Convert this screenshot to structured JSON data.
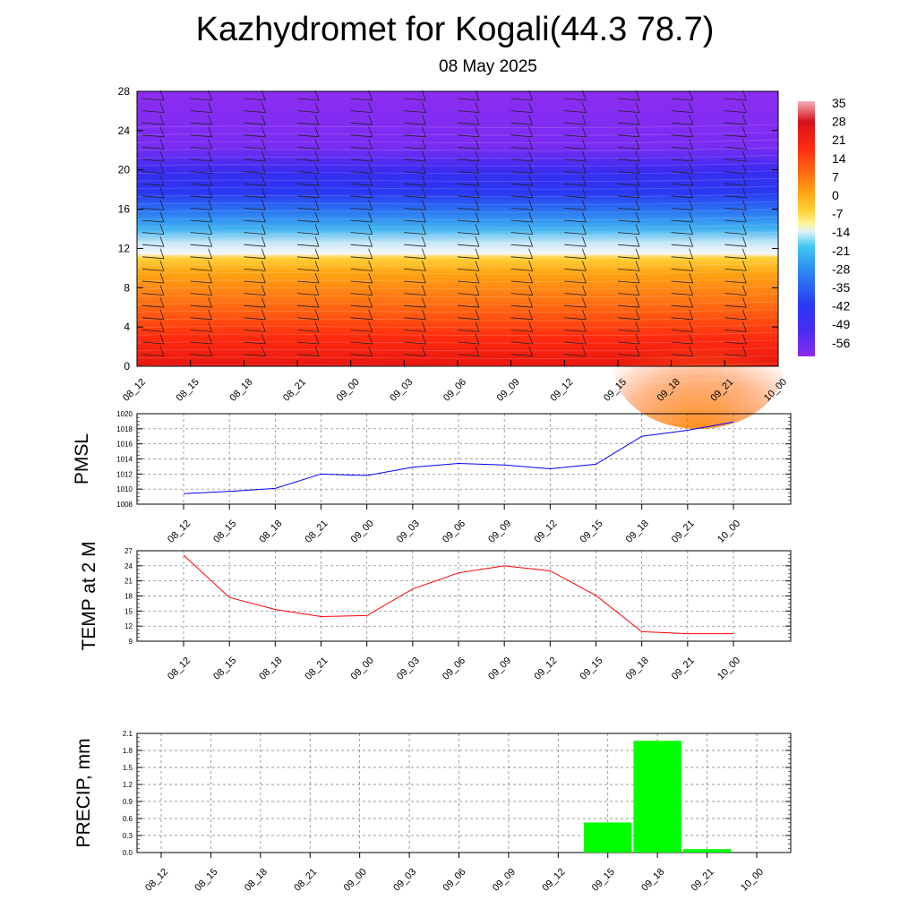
{
  "header": {
    "title": "Kazhydromet for Kogali(44.3 78.7)",
    "date": "08 May 2025"
  },
  "chart_data": [
    {
      "type": "heatmap",
      "name": "temperature-height-section",
      "x": [
        "08_12",
        "08_15",
        "08_18",
        "08_21",
        "09_00",
        "09_03",
        "09_06",
        "09_09",
        "09_12",
        "09_15",
        "09_18",
        "09_21",
        "10_00"
      ],
      "ylim": [
        0,
        28
      ],
      "yticks": [
        0,
        4,
        8,
        12,
        16,
        20,
        24,
        28
      ],
      "colorbar": {
        "labels": [
          "35",
          "28",
          "21",
          "14",
          "7",
          "0",
          "-7",
          "-14",
          "-21",
          "-28",
          "-35",
          "-42",
          "-49",
          "-56"
        ],
        "range": [
          -63,
          35
        ]
      },
      "colors": {
        "hot": "#ee1c12",
        "orange": "#ff9a12",
        "yellow": "#fff59a",
        "white": "#f4f6fb",
        "cyan": "#29b7f2",
        "blue": "#2a39f2",
        "violet": "#8b2cf2",
        "pink": "#f07a8a"
      }
    },
    {
      "type": "line",
      "name": "PMSL",
      "ylabel": "PMSL",
      "x": [
        "08_12",
        "08_15",
        "08_18",
        "08_21",
        "09_00",
        "09_03",
        "09_06",
        "09_09",
        "09_12",
        "09_15",
        "09_18",
        "09_21",
        "10_00"
      ],
      "values": [
        1009.4,
        1009.7,
        1010.1,
        1012.0,
        1011.8,
        1012.9,
        1013.4,
        1013.2,
        1012.7,
        1013.3,
        1017.0,
        1017.8,
        1018.9
      ],
      "ylim": [
        1008,
        1020
      ],
      "yticks": [
        "1008",
        "1010",
        "1012",
        "1014",
        "1016",
        "1018",
        "1020"
      ],
      "color": "#0000ff"
    },
    {
      "type": "line",
      "name": "TEMP at 2 M",
      "ylabel": "TEMP at 2 M",
      "x": [
        "08_12",
        "08_15",
        "08_18",
        "08_21",
        "09_00",
        "09_03",
        "09_06",
        "09_09",
        "09_12",
        "09_15",
        "09_18",
        "09_21",
        "10_00"
      ],
      "values": [
        26.1,
        17.7,
        15.3,
        13.9,
        14.1,
        19.4,
        22.6,
        24.0,
        23.0,
        18.1,
        10.9,
        10.5,
        10.5
      ],
      "ylim": [
        9,
        27
      ],
      "yticks": [
        "9",
        "12",
        "15",
        "18",
        "21",
        "24",
        "27"
      ],
      "color": "#ff0000"
    },
    {
      "type": "bar",
      "name": "PRECIP, mm",
      "ylabel": "PRECIP, mm",
      "x": [
        "08_12",
        "08_15",
        "08_18",
        "08_21",
        "09_00",
        "09_03",
        "09_06",
        "09_09",
        "09_12",
        "09_15",
        "09_18",
        "09_21",
        "10_00"
      ],
      "values": [
        0,
        0,
        0,
        0,
        0,
        0,
        0,
        0,
        0,
        0.53,
        1.97,
        0.06,
        0
      ],
      "ylim": [
        0,
        2.1
      ],
      "yticks": [
        "0.0",
        "0.3",
        "0.6",
        "0.9",
        "1.2",
        "1.5",
        "1.8",
        "2.1"
      ],
      "color": "#00ff00"
    }
  ]
}
